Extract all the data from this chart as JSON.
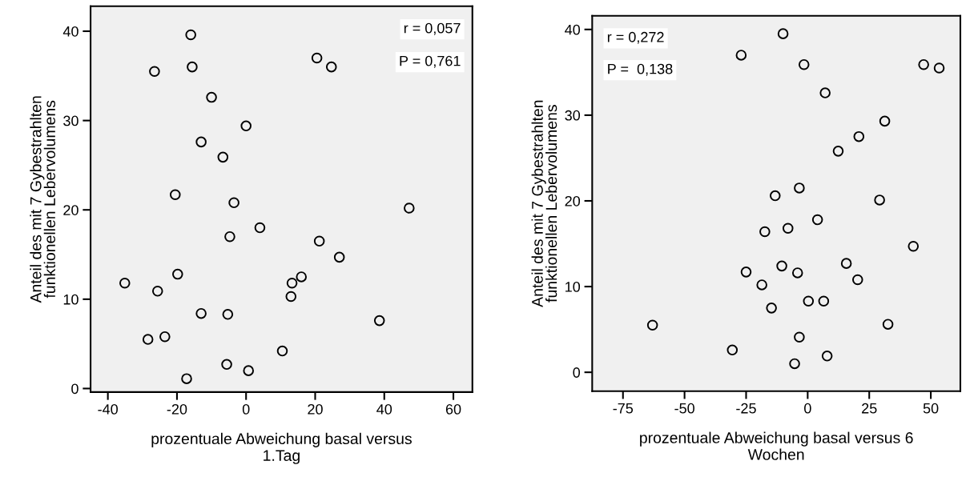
{
  "chart_data": [
    {
      "type": "scatter",
      "xlabel": "prozentuale Abweichung basal versus\n1.Tag",
      "ylabel": "Anteil des mit 7 Gybestrahlten\nfunktionellen Lebervolumens",
      "annotations": [
        "r = 0,057",
        "P = 0,761"
      ],
      "marker": "circle",
      "grid": false,
      "xlim": [
        -45,
        65.5
      ],
      "ylim": [
        -0.4,
        42.8
      ],
      "xticks": [
        -40,
        -20,
        0,
        20,
        40,
        60
      ],
      "yticks": [
        0,
        10,
        20,
        30,
        40
      ],
      "series": [
        {
          "color": "#000000",
          "x": [
            -16.0,
            -26.5,
            -15.6,
            20.5,
            24.7,
            -10,
            0,
            -13,
            -6.7,
            -20.5,
            -3.5,
            47.2,
            4,
            -4.7,
            21.2,
            27,
            -35.1,
            -19.8,
            -25.6,
            16,
            13.3,
            13,
            -13,
            -5.3,
            38.6,
            -28.4,
            -23.5,
            10.5,
            -5.6,
            0.7,
            -17.2
          ],
          "values": [
            39.6,
            35.5,
            36,
            37.0,
            36,
            32.6,
            29.4,
            27.6,
            25.9,
            21.7,
            20.8,
            20.2,
            18.0,
            17,
            16.5,
            14.7,
            11.8,
            12.8,
            10.9,
            12.5,
            11.8,
            10.3,
            8.4,
            8.3,
            7.6,
            5.5,
            5.8,
            4.2,
            2.7,
            2.0,
            1.1
          ]
        }
      ]
    },
    {
      "type": "scatter",
      "xlabel": "prozentuale Abweichung basal versus 6\nWochen",
      "ylabel": "Anteil des mit 7 Gybestrahlten\nfunktionellen Lebervolumens",
      "annotations": [
        "r = 0,272",
        "P =  0,138"
      ],
      "marker": "circle",
      "grid": false,
      "xlim": [
        -87.5,
        62
      ],
      "ylim": [
        -2.2,
        41.6
      ],
      "xticks": [
        -75,
        -50,
        -25,
        0,
        25,
        50
      ],
      "yticks": [
        0,
        10,
        20,
        30,
        40
      ],
      "series": [
        {
          "color": "#000000",
          "x": [
            -10.0,
            -27.0,
            -1.5,
            47.1,
            53.4,
            7.1,
            31.3,
            20.8,
            12.4,
            -3.4,
            -13.2,
            29.2,
            4.0,
            -8.0,
            -17.4,
            42.9,
            15.7,
            -10.5,
            -25.0,
            -4.1,
            20.3,
            -18.6,
            0.3,
            6.5,
            -14.7,
            -63.0,
            32.6,
            -3.4,
            -30.6,
            7.9,
            -5.3
          ],
          "values": [
            39.5,
            37.0,
            35.9,
            35.9,
            35.5,
            32.6,
            29.3,
            27.5,
            25.8,
            21.5,
            20.6,
            20.1,
            17.8,
            16.8,
            16.4,
            14.7,
            12.7,
            12.4,
            11.7,
            11.6,
            10.8,
            10.2,
            8.3,
            8.3,
            7.5,
            5.5,
            5.6,
            4.1,
            2.6,
            1.9,
            1.0
          ]
        }
      ]
    }
  ]
}
